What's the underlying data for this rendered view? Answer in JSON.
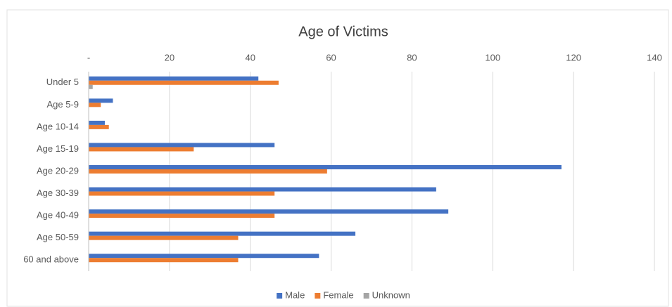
{
  "chart_data": {
    "type": "bar",
    "orientation": "horizontal",
    "title": "Age of Victims",
    "categories": [
      "Under 5",
      "Age 5-9",
      "Age 10-14",
      "Age 15-19",
      "Age 20-29",
      "Age 30-39",
      "Age 40-49",
      "Age 50-59",
      "60 and above"
    ],
    "series": [
      {
        "name": "Male",
        "color": "#4472c4",
        "values": [
          42,
          6,
          4,
          46,
          117,
          86,
          89,
          66,
          57
        ]
      },
      {
        "name": "Female",
        "color": "#ed7d31",
        "values": [
          47,
          3,
          5,
          26,
          59,
          46,
          46,
          37,
          37
        ]
      },
      {
        "name": "Unknown",
        "color": "#a5a5a5",
        "values": [
          1,
          0,
          0,
          0,
          0,
          0,
          0,
          0,
          0
        ]
      }
    ],
    "xlim": [
      0,
      140
    ],
    "xticks": [
      {
        "value": 0,
        "label": "-"
      },
      20,
      40,
      60,
      80,
      100,
      120,
      140
    ],
    "grid": true,
    "legend": "bottom"
  }
}
